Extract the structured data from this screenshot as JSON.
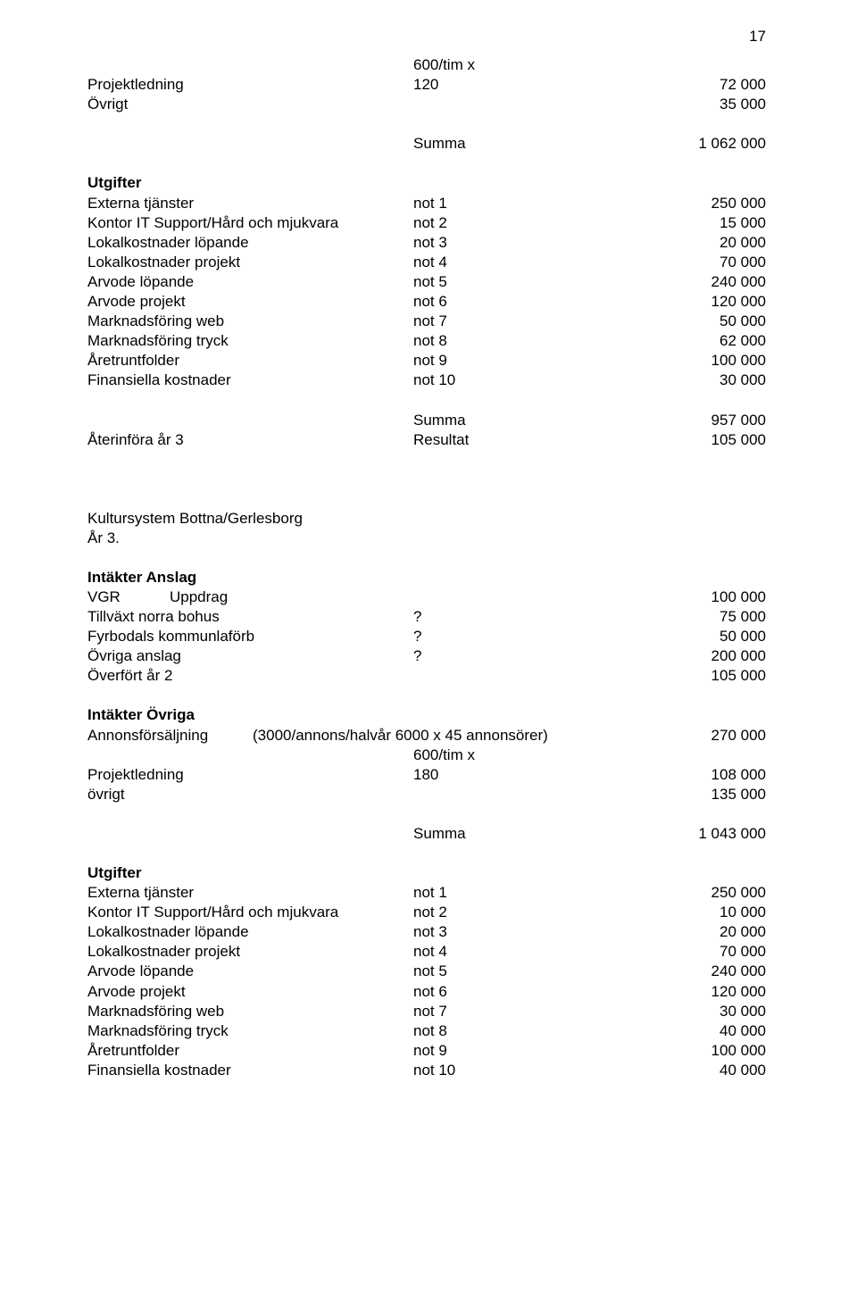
{
  "page_number": "17",
  "top": {
    "rows": [
      {
        "c1": "",
        "c2": "600/tim x",
        "c3": ""
      },
      {
        "c1": "Projektledning",
        "c2": "120",
        "c3": "72 000"
      },
      {
        "c1": "Övrigt",
        "c2": "",
        "c3": "35 000"
      }
    ]
  },
  "summa1": {
    "label": "Summa",
    "value": "1 062 000"
  },
  "utgifter1": {
    "heading": "Utgifter",
    "rows": [
      {
        "c1": "Externa tjänster",
        "c2": "not 1",
        "c3": "250 000"
      },
      {
        "c1": "Kontor IT Support/Hård och mjukvara",
        "c2": "not 2",
        "c3": "15 000"
      },
      {
        "c1": "Lokalkostnader löpande",
        "c2": "not 3",
        "c3": "20 000"
      },
      {
        "c1": "Lokalkostnader projekt",
        "c2": "not 4",
        "c3": "70 000"
      },
      {
        "c1": "Arvode löpande",
        "c2": "not 5",
        "c3": "240 000"
      },
      {
        "c1": "Arvode projekt",
        "c2": "not 6",
        "c3": "120 000"
      },
      {
        "c1": "Marknadsföring web",
        "c2": "not 7",
        "c3": "50 000"
      },
      {
        "c1": "Marknadsföring tryck",
        "c2": "not 8",
        "c3": "62 000"
      },
      {
        "c1": "Åretruntfolder",
        "c2": "not 9",
        "c3": "100 000"
      },
      {
        "c1": "Finansiella kostnader",
        "c2": "not 10",
        "c3": "30 000"
      }
    ]
  },
  "result1": {
    "rows": [
      {
        "c1": "",
        "c2": "Summa",
        "c3": "957 000"
      },
      {
        "c1": "Återinföra år 3",
        "c2": "Resultat",
        "c3": "105 000"
      }
    ]
  },
  "section2": {
    "title": "Kultursystem Bottna/Gerlesborg",
    "subtitle": "År 3."
  },
  "intakter_anslag": {
    "heading": "Intäkter Anslag",
    "rows": [
      {
        "c1a": "VGR",
        "c1b": "Uppdrag",
        "c2": "",
        "c3": "100 000"
      },
      {
        "c1": "Tillväxt norra bohus",
        "c2": "?",
        "c3": "75 000"
      },
      {
        "c1": "Fyrbodals kommunlaförb",
        "c2": "?",
        "c3": "50 000"
      },
      {
        "c1": "Övriga anslag",
        "c2": "?",
        "c3": "200 000"
      },
      {
        "c1": "Överfört år 2",
        "c2": "",
        "c3": "105 000"
      }
    ]
  },
  "intakter_ovriga": {
    "heading": "Intäkter Övriga",
    "rows": [
      {
        "c1": "Annonsförsäljning",
        "c2": "(3000/annons/halvår 6000 x 45 annonsörer)",
        "c3": "270 000"
      },
      {
        "c1": "",
        "c2": "600/tim x",
        "c3": ""
      },
      {
        "c1": "Projektledning",
        "c2": "180",
        "c3": "108 000"
      },
      {
        "c1": "övrigt",
        "c2": "",
        "c3": "135 000"
      }
    ]
  },
  "summa2": {
    "label": "Summa",
    "value": "1 043 000"
  },
  "utgifter2": {
    "heading": "Utgifter",
    "rows": [
      {
        "c1": "Externa tjänster",
        "c2": "not 1",
        "c3": "250 000"
      },
      {
        "c1": "Kontor IT Support/Hård och mjukvara",
        "c2": "not 2",
        "c3": "10 000"
      },
      {
        "c1": "Lokalkostnader löpande",
        "c2": "not 3",
        "c3": "20 000"
      },
      {
        "c1": "Lokalkostnader projekt",
        "c2": "not 4",
        "c3": "70 000"
      },
      {
        "c1": "Arvode löpande",
        "c2": "not 5",
        "c3": "240 000"
      },
      {
        "c1": "Arvode projekt",
        "c2": "not 6",
        "c3": "120 000"
      },
      {
        "c1": "Marknadsföring web",
        "c2": "not 7",
        "c3": "30 000"
      },
      {
        "c1": "Marknadsföring tryck",
        "c2": "not 8",
        "c3": "40 000"
      },
      {
        "c1": "Åretruntfolder",
        "c2": "not 9",
        "c3": "100 000"
      },
      {
        "c1": "Finansiella kostnader",
        "c2": "not 10",
        "c3": "40 000"
      }
    ]
  }
}
